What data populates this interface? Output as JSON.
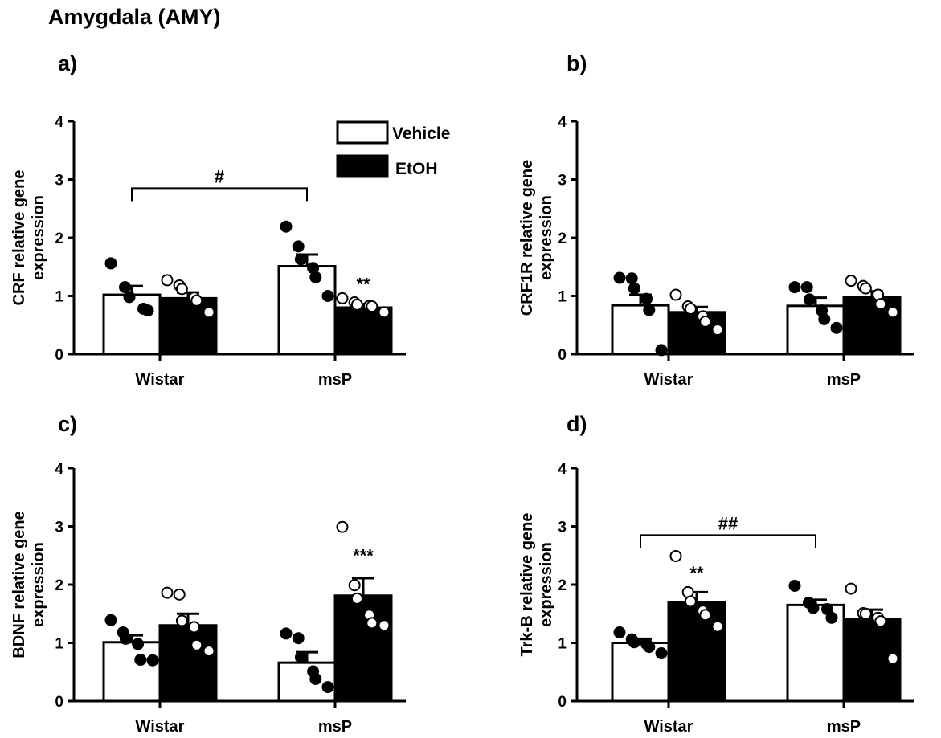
{
  "figure_title": "Amygdala (AMY)",
  "legend": {
    "vehicle_label": "Vehicle",
    "etoh_label": "EtOH"
  },
  "colors": {
    "vehicle": "#ffffff",
    "etoh": "#000000",
    "stroke": "#000000"
  },
  "chart_data": [
    {
      "type": "bar",
      "panel": "a)",
      "ylabel": "CRF relative gene expression",
      "ylabel_lines": [
        "CRF relative gene",
        "expression"
      ],
      "ylim": [
        0,
        4
      ],
      "yticks": [
        "0",
        "1",
        "2",
        "3",
        "4"
      ],
      "categories": [
        "Wistar",
        "msP"
      ],
      "series": [
        {
          "name": "Vehicle",
          "values": [
            1.02,
            1.51
          ],
          "sem": [
            0.15,
            0.2
          ],
          "points": [
            [
              1.56,
              1.15,
              0.98,
              0.78,
              0.75
            ],
            [
              2.19,
              1.85,
              1.63,
              1.48,
              1.32,
              1.0
            ]
          ]
        },
        {
          "name": "EtOH",
          "values": [
            0.96,
            0.8
          ],
          "sem": [
            0.1,
            0.06
          ],
          "points": [
            [
              1.27,
              1.18,
              1.12,
              0.97,
              0.92,
              0.72
            ],
            [
              0.96,
              0.89,
              0.85,
              0.83,
              0.82,
              0.72
            ]
          ]
        }
      ],
      "annotations": [
        {
          "text": "#",
          "type": "bracket",
          "from": "Wistar-Vehicle",
          "to": "msP-Vehicle",
          "y": 2.85
        },
        {
          "text": "**",
          "type": "above",
          "target": "msP-EtOH",
          "y": 1.15
        }
      ]
    },
    {
      "type": "bar",
      "panel": "b)",
      "ylabel": "CRF1R relative gene expression",
      "ylabel_lines": [
        "CRF1R relative gene",
        "expression"
      ],
      "ylim": [
        0,
        4
      ],
      "yticks": [
        "0",
        "1",
        "2",
        "3",
        "4"
      ],
      "categories": [
        "Wistar",
        "msP"
      ],
      "series": [
        {
          "name": "Vehicle",
          "values": [
            0.84,
            0.83
          ],
          "sem": [
            0.18,
            0.14
          ],
          "points": [
            [
              1.31,
              1.3,
              1.13,
              0.95,
              0.76,
              0.07
            ],
            [
              1.15,
              1.15,
              0.94,
              0.75,
              0.6,
              0.45
            ]
          ]
        },
        {
          "name": "EtOH",
          "values": [
            0.72,
            0.98
          ],
          "sem": [
            0.09,
            0.1
          ],
          "points": [
            [
              1.02,
              0.82,
              0.78,
              0.65,
              0.56,
              0.42
            ],
            [
              1.26,
              1.17,
              1.13,
              1.02,
              0.86,
              0.72
            ]
          ]
        }
      ],
      "annotations": []
    },
    {
      "type": "bar",
      "panel": "c)",
      "ylabel": "BDNF relative gene expression",
      "ylabel_lines": [
        "BDNF relative gene",
        "expression"
      ],
      "ylim": [
        0,
        4
      ],
      "yticks": [
        "0",
        "1",
        "2",
        "3",
        "4"
      ],
      "categories": [
        "Wistar",
        "msP"
      ],
      "series": [
        {
          "name": "Vehicle",
          "values": [
            1.01,
            0.66
          ],
          "sem": [
            0.12,
            0.18
          ],
          "points": [
            [
              1.39,
              1.18,
              1.07,
              0.98,
              0.71,
              0.7
            ],
            [
              1.16,
              1.08,
              0.75,
              0.51,
              0.38,
              0.24
            ]
          ]
        },
        {
          "name": "EtOH",
          "values": [
            1.3,
            1.81
          ],
          "sem": [
            0.2,
            0.3
          ],
          "points": [
            [
              1.86,
              1.83,
              1.38,
              1.27,
              0.96,
              0.86
            ],
            [
              2.99,
              1.99,
              1.76,
              1.48,
              1.34,
              1.3
            ]
          ]
        }
      ],
      "annotations": [
        {
          "text": "***",
          "type": "above",
          "target": "msP-EtOH",
          "y": 2.45
        }
      ]
    },
    {
      "type": "bar",
      "panel": "d)",
      "ylabel": "Trk-B relative gene expression",
      "ylabel_lines": [
        "Trk-B relative gene",
        "expression"
      ],
      "ylim": [
        0,
        4
      ],
      "yticks": [
        "0",
        "1",
        "2",
        "3",
        "4"
      ],
      "categories": [
        "Wistar",
        "msP"
      ],
      "series": [
        {
          "name": "Vehicle",
          "values": [
            1.0,
            1.65
          ],
          "sem": [
            0.07,
            0.09
          ],
          "points": [
            [
              1.18,
              1.06,
              1.01,
              0.98,
              0.93,
              0.82
            ],
            [
              1.98,
              1.69,
              1.6,
              1.58,
              1.43
            ]
          ]
        },
        {
          "name": "EtOH",
          "values": [
            1.7,
            1.41
          ],
          "sem": [
            0.17,
            0.16
          ],
          "points": [
            [
              2.49,
              1.87,
              1.71,
              1.55,
              1.48,
              1.28
            ],
            [
              1.93,
              1.51,
              1.5,
              1.43,
              1.37,
              0.73
            ]
          ]
        }
      ],
      "annotations": [
        {
          "text": "##",
          "type": "bracket",
          "from": "Wistar-Vehicle",
          "to": "msP-Vehicle",
          "y": 2.85
        },
        {
          "text": "**",
          "type": "above",
          "target": "Wistar-EtOH",
          "y": 2.15
        }
      ]
    }
  ]
}
